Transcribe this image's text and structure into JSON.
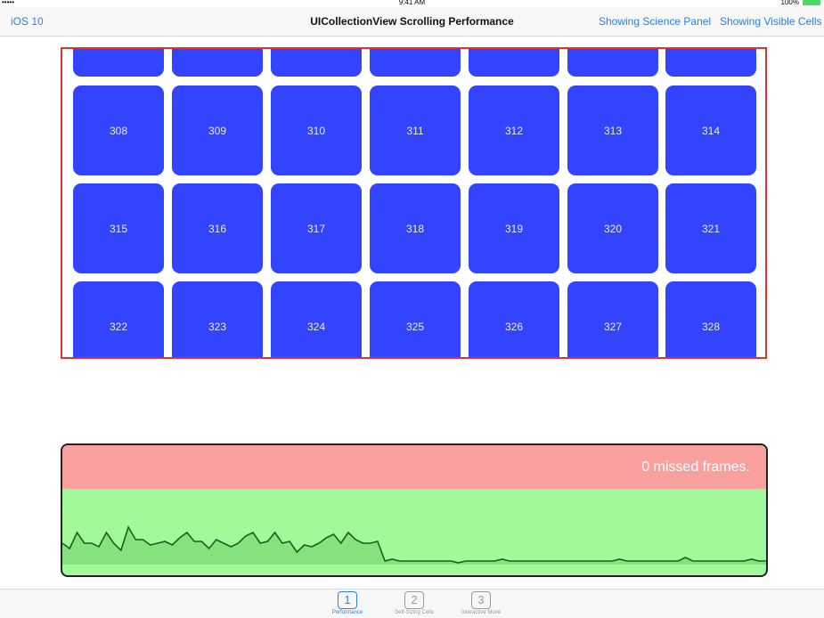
{
  "status_bar": {
    "carrier": "••••• ",
    "time": "9:41 AM",
    "battery": "100%"
  },
  "nav": {
    "back": "iOS 10",
    "title": "UICollectionView Scrolling Performance",
    "science": "Showing Science Panel",
    "visible_cells": "Showing Visible Cells"
  },
  "grid": {
    "partial_row_count": 7,
    "rows": [
      [
        "308",
        "309",
        "310",
        "311",
        "312",
        "313",
        "314"
      ],
      [
        "315",
        "316",
        "317",
        "318",
        "319",
        "320",
        "321"
      ],
      [
        "322",
        "323",
        "324",
        "325",
        "326",
        "327",
        "328"
      ]
    ],
    "cell_color": "#3344ff"
  },
  "perf": {
    "label": "0 missed frames.",
    "frame_times": [
      24,
      18,
      36,
      24,
      24,
      20,
      36,
      24,
      16,
      42,
      28,
      28,
      22,
      24,
      26,
      22,
      30,
      36,
      26,
      26,
      18,
      28,
      24,
      20,
      24,
      32,
      36,
      24,
      26,
      36,
      24,
      26,
      14,
      22,
      20,
      24,
      30,
      34,
      24,
      36,
      28,
      24,
      24,
      26,
      4,
      6,
      4,
      4,
      4,
      4,
      4,
      4,
      4,
      4,
      2,
      4,
      4,
      4,
      4,
      4,
      6,
      4,
      4,
      4,
      4,
      4,
      4,
      4,
      4,
      4,
      4,
      4,
      4,
      4,
      4,
      4,
      6,
      4,
      4,
      4,
      4,
      4,
      4,
      4,
      4,
      8,
      4,
      4,
      4,
      4,
      4,
      4,
      4,
      4,
      6,
      4,
      4
    ],
    "colors": {
      "bad": "#f7a09e",
      "good": "#a2f99a",
      "line": "#1c5e1c"
    }
  },
  "tabs": [
    {
      "num": "1",
      "label": "Performance",
      "active": true
    },
    {
      "num": "2",
      "label": "Self-Sizing Cells",
      "active": false
    },
    {
      "num": "3",
      "label": "Interactive Move",
      "active": false
    }
  ]
}
